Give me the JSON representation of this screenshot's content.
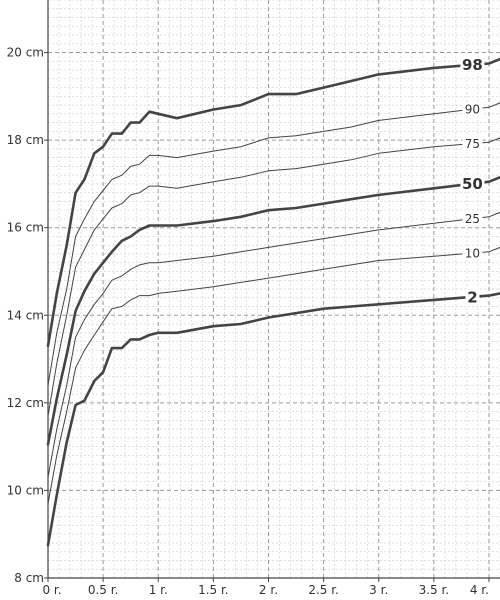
{
  "chart_data": {
    "type": "line",
    "title": "",
    "xlabel": "",
    "ylabel": "",
    "xlim": [
      0,
      4.1
    ],
    "ylim": [
      8,
      21.2
    ],
    "x_ticks": [
      {
        "value": 0,
        "label": "0 r."
      },
      {
        "value": 0.5,
        "label": "0.5 r."
      },
      {
        "value": 1,
        "label": "1 r."
      },
      {
        "value": 1.5,
        "label": "1.5 r."
      },
      {
        "value": 2,
        "label": "2 r."
      },
      {
        "value": 2.5,
        "label": "2.5 r."
      },
      {
        "value": 3,
        "label": "3 r."
      },
      {
        "value": 3.5,
        "label": "3.5 r."
      },
      {
        "value": 4,
        "label": "4 r."
      }
    ],
    "y_ticks": [
      {
        "value": 8,
        "label": "8 cm"
      },
      {
        "value": 10,
        "label": "10 cm"
      },
      {
        "value": 12,
        "label": "12 cm"
      },
      {
        "value": 14,
        "label": "14 cm"
      },
      {
        "value": 16,
        "label": "16 cm"
      },
      {
        "value": 18,
        "label": "18 cm"
      },
      {
        "value": 20,
        "label": "20 cm"
      }
    ],
    "grid": true,
    "line_color": "#444444",
    "series": [
      {
        "name": "98",
        "emphasis": true,
        "x": [
          0.0,
          0.08,
          0.17,
          0.25,
          0.33,
          0.42,
          0.5,
          0.58,
          0.67,
          0.75,
          0.83,
          0.92,
          1.0,
          1.17,
          1.5,
          1.75,
          2.0,
          2.25,
          2.5,
          2.75,
          3.0,
          3.5,
          4.0,
          4.1
        ],
        "y": [
          13.3,
          14.5,
          15.6,
          16.8,
          17.1,
          17.7,
          17.85,
          18.15,
          18.15,
          18.4,
          18.4,
          18.65,
          18.6,
          18.5,
          18.7,
          18.8,
          19.05,
          19.05,
          19.2,
          19.35,
          19.5,
          19.65,
          19.75,
          19.85
        ]
      },
      {
        "name": "90",
        "emphasis": false,
        "x": [
          0.0,
          0.08,
          0.17,
          0.25,
          0.33,
          0.42,
          0.5,
          0.58,
          0.67,
          0.75,
          0.83,
          0.92,
          1.0,
          1.17,
          1.5,
          1.75,
          2.0,
          2.25,
          2.5,
          2.75,
          3.0,
          3.5,
          4.0,
          4.1
        ],
        "y": [
          12.4,
          13.6,
          14.6,
          15.8,
          16.2,
          16.6,
          16.85,
          17.1,
          17.2,
          17.4,
          17.45,
          17.65,
          17.65,
          17.6,
          17.75,
          17.85,
          18.05,
          18.1,
          18.2,
          18.3,
          18.45,
          18.6,
          18.75,
          18.85
        ]
      },
      {
        "name": "75",
        "emphasis": false,
        "x": [
          0.0,
          0.08,
          0.17,
          0.25,
          0.33,
          0.42,
          0.5,
          0.58,
          0.67,
          0.75,
          0.83,
          0.92,
          1.0,
          1.17,
          1.5,
          1.75,
          2.0,
          2.25,
          2.5,
          2.75,
          3.0,
          3.5,
          4.0,
          4.1
        ],
        "y": [
          11.7,
          12.9,
          14.0,
          15.1,
          15.5,
          15.95,
          16.2,
          16.45,
          16.55,
          16.75,
          16.8,
          16.95,
          16.95,
          16.9,
          17.05,
          17.15,
          17.3,
          17.35,
          17.45,
          17.55,
          17.7,
          17.85,
          17.95,
          18.05
        ]
      },
      {
        "name": "50",
        "emphasis": true,
        "x": [
          0.0,
          0.08,
          0.17,
          0.25,
          0.33,
          0.42,
          0.5,
          0.58,
          0.67,
          0.75,
          0.83,
          0.92,
          1.0,
          1.17,
          1.5,
          1.75,
          2.0,
          2.25,
          2.5,
          2.75,
          3.0,
          3.5,
          4.0,
          4.1
        ],
        "y": [
          11.05,
          12.1,
          13.1,
          14.1,
          14.55,
          14.95,
          15.2,
          15.45,
          15.7,
          15.8,
          15.95,
          16.05,
          16.05,
          16.05,
          16.15,
          16.25,
          16.4,
          16.45,
          16.55,
          16.65,
          16.75,
          16.9,
          17.05,
          17.15
        ]
      },
      {
        "name": "25",
        "emphasis": false,
        "x": [
          0.0,
          0.08,
          0.17,
          0.25,
          0.33,
          0.42,
          0.5,
          0.58,
          0.67,
          0.75,
          0.83,
          0.92,
          1.0,
          1.17,
          1.5,
          1.75,
          2.0,
          2.25,
          2.5,
          2.75,
          3.0,
          3.5,
          4.0,
          4.1
        ],
        "y": [
          10.3,
          11.4,
          12.4,
          13.5,
          13.9,
          14.25,
          14.5,
          14.8,
          14.9,
          15.05,
          15.15,
          15.2,
          15.2,
          15.25,
          15.35,
          15.45,
          15.55,
          15.65,
          15.75,
          15.85,
          15.95,
          16.1,
          16.25,
          16.35
        ]
      },
      {
        "name": "10",
        "emphasis": false,
        "x": [
          0.0,
          0.08,
          0.17,
          0.25,
          0.33,
          0.42,
          0.5,
          0.58,
          0.67,
          0.75,
          0.83,
          0.92,
          1.0,
          1.17,
          1.5,
          1.75,
          2.0,
          2.25,
          2.5,
          2.75,
          3.0,
          3.5,
          4.0,
          4.1
        ],
        "y": [
          9.7,
          10.8,
          11.8,
          12.8,
          13.2,
          13.55,
          13.85,
          14.15,
          14.2,
          14.35,
          14.45,
          14.45,
          14.5,
          14.55,
          14.65,
          14.75,
          14.85,
          14.95,
          15.05,
          15.15,
          15.25,
          15.35,
          15.45,
          15.55
        ]
      },
      {
        "name": "2",
        "emphasis": true,
        "x": [
          0.0,
          0.08,
          0.17,
          0.25,
          0.33,
          0.42,
          0.5,
          0.58,
          0.67,
          0.75,
          0.83,
          0.92,
          1.0,
          1.17,
          1.5,
          1.75,
          2.0,
          2.25,
          2.5,
          2.75,
          3.0,
          3.5,
          4.0,
          4.1
        ],
        "y": [
          8.75,
          9.9,
          11.1,
          11.95,
          12.05,
          12.5,
          12.7,
          13.25,
          13.25,
          13.45,
          13.45,
          13.55,
          13.6,
          13.6,
          13.75,
          13.8,
          13.95,
          14.05,
          14.15,
          14.2,
          14.25,
          14.35,
          14.45,
          14.5
        ]
      }
    ]
  }
}
